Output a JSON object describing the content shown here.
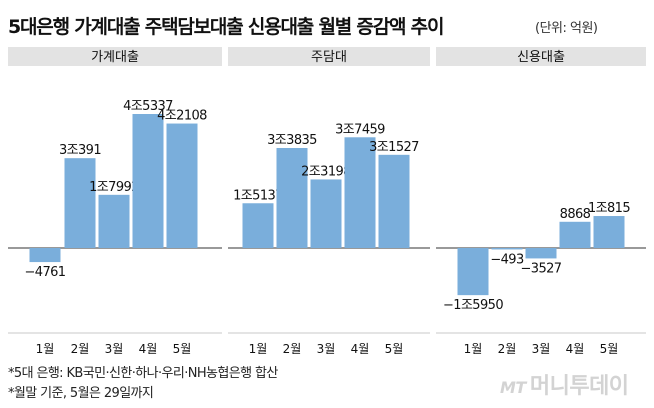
{
  "header": {
    "title": "5대은행 가계대출 주택담보대출 신용대출 월별 증감액 추이",
    "unit": "(단위: 억원)"
  },
  "footnotes": [
    "*5대 은행: KB국민·신한·하나·우리·NH농협은행 합산",
    "*월말 기준, 5월은 29일까지"
  ],
  "brand": {
    "mark": "MT",
    "name": "머니투데이"
  },
  "colors": {
    "bar": "#7aaedb",
    "panel_header": "#e3e3e3",
    "grid": "#c8c8c8",
    "axis": "#333333"
  },
  "chart_data": [
    {
      "type": "bar",
      "title": "가계대출",
      "categories": [
        "1월",
        "2월",
        "3월",
        "4월",
        "5월"
      ],
      "values": [
        -4761,
        30391,
        17992,
        45337,
        42108
      ],
      "labels": [
        "−4761",
        "3조391",
        "1조7992",
        "4조5337",
        "4조2108"
      ]
    },
    {
      "type": "bar",
      "title": "주담대",
      "categories": [
        "1월",
        "2월",
        "3월",
        "4월",
        "5월"
      ],
      "values": [
        15137,
        33835,
        23198,
        37459,
        31527
      ],
      "labels": [
        "1조5137",
        "3조3835",
        "2조3198",
        "3조7459",
        "3조1527"
      ]
    },
    {
      "type": "bar",
      "title": "신용대출",
      "categories": [
        "1월",
        "2월",
        "3월",
        "4월",
        "5월"
      ],
      "values": [
        -15950,
        -493,
        -3527,
        8868,
        10815
      ],
      "labels": [
        "−1조5950",
        "−493",
        "−3527",
        "8868",
        "1조815"
      ]
    }
  ]
}
